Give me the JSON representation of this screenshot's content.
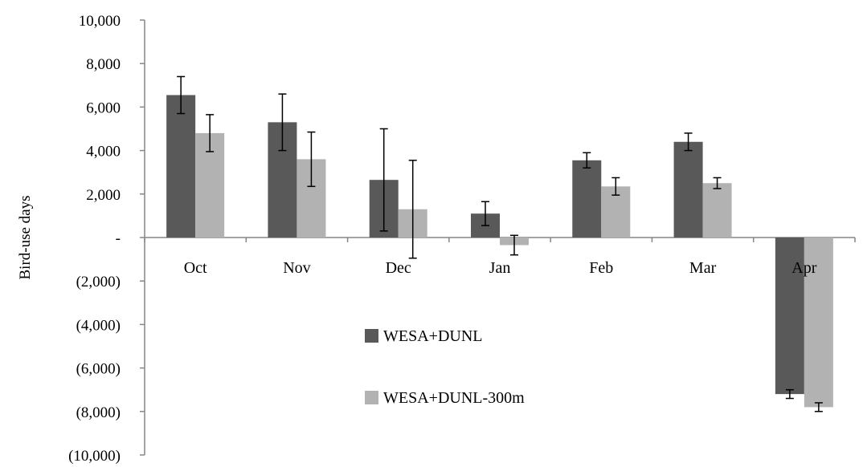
{
  "chart_data": {
    "type": "bar",
    "title": "",
    "xlabel": "",
    "ylabel": "Bird-use days",
    "ylim": [
      -10000,
      10000
    ],
    "yticks": [
      10000,
      8000,
      6000,
      4000,
      2000,
      0,
      -2000,
      -4000,
      -6000,
      -8000,
      -10000
    ],
    "ytick_labels": [
      "10,000",
      "8,000",
      "6,000",
      "4,000",
      "2,000",
      "-",
      "(2,000)",
      "(4,000)",
      "(6,000)",
      "(8,000)",
      "(10,000)"
    ],
    "categories": [
      "Oct",
      "Nov",
      "Dec",
      "Jan",
      "Feb",
      "Mar",
      "Apr"
    ],
    "series": [
      {
        "name": "WESA+DUNL",
        "color": "#595959",
        "values": [
          6550,
          5300,
          2650,
          1100,
          3550,
          4400,
          -7200
        ],
        "error": [
          850,
          1300,
          2350,
          550,
          350,
          400,
          200
        ]
      },
      {
        "name": "WESA+DUNL-300m",
        "color": "#b2b2b2",
        "values": [
          4800,
          3600,
          1300,
          -350,
          2350,
          2500,
          -7800
        ],
        "error": [
          850,
          1250,
          2250,
          450,
          400,
          250,
          200
        ]
      }
    ],
    "grid": false,
    "legend_position": "center-bottom"
  }
}
